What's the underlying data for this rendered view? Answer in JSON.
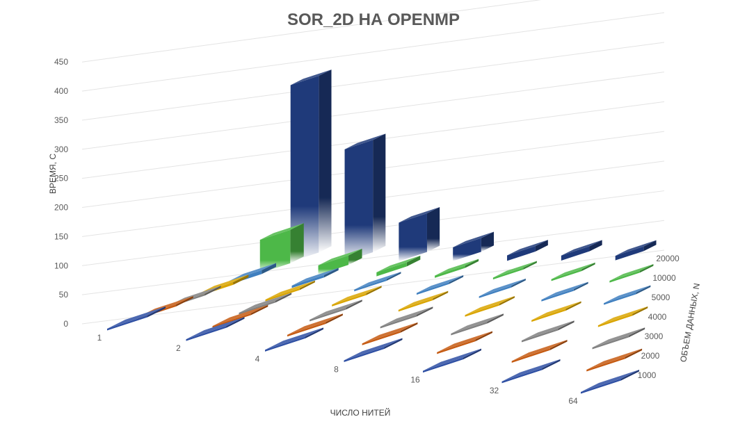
{
  "chart_data": {
    "type": "bar",
    "subtype": "3d-column",
    "title": "SOR_2D НА OPENMP",
    "xlabel": "ЧИСЛО НИТЕЙ",
    "ylabel": "ВРЕМЯ, С",
    "zlabel": "ОБЪЕМ ДАННЫХ, N",
    "categories": [
      "1",
      "2",
      "4",
      "8",
      "16",
      "32",
      "64"
    ],
    "ylim": [
      0,
      450
    ],
    "y_ticks": [
      "0",
      "50",
      "100",
      "150",
      "200",
      "250",
      "300",
      "350",
      "400",
      "450"
    ],
    "grid": true,
    "legend": "none",
    "series": [
      {
        "name": "1000",
        "color": "#2E4FA3",
        "values": [
          0.1,
          0.1,
          0.1,
          0.1,
          0.1,
          0.1,
          0.1
        ]
      },
      {
        "name": "2000",
        "color": "#C55A11",
        "values": [
          0.5,
          0.4,
          0.3,
          0.2,
          0.2,
          0.2,
          0.2
        ]
      },
      {
        "name": "3000",
        "color": "#808080",
        "values": [
          2,
          1,
          0.6,
          0.4,
          0.3,
          0.3,
          0.3
        ]
      },
      {
        "name": "4000",
        "color": "#D9A400",
        "values": [
          5,
          3,
          1.5,
          0.8,
          0.6,
          0.6,
          0.6
        ]
      },
      {
        "name": "5000",
        "color": "#3F7FBF",
        "values": [
          8,
          5,
          3,
          1.5,
          1,
          1,
          1
        ]
      },
      {
        "name": "10000",
        "color": "#4DB848",
        "values": [
          75,
          21,
          9,
          5,
          4,
          4,
          4
        ]
      },
      {
        "name": "20000",
        "color": "#1F3A7A",
        "values": [
          425,
          270,
          93,
          33,
          13,
          12,
          11
        ]
      }
    ]
  }
}
